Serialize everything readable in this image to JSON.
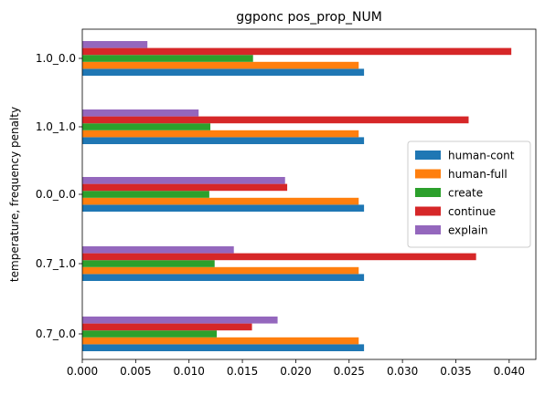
{
  "chart_data": {
    "type": "bar",
    "orientation": "horizontal",
    "title": "ggponc pos_prop_NUM",
    "xlabel": "",
    "ylabel": "temperature, frequency penalty",
    "categories": [
      "0.7_0.0",
      "0.7_1.0",
      "0.0_0.0",
      "1.0_1.0",
      "1.0_0.0"
    ],
    "xlim": [
      0,
      0.0425
    ],
    "xticks": [
      "0.000",
      "0.005",
      "0.010",
      "0.015",
      "0.020",
      "0.025",
      "0.030",
      "0.035",
      "0.040"
    ],
    "tick_values": [
      0,
      0.005,
      0.01,
      0.015,
      0.02,
      0.025,
      0.03,
      0.035,
      0.04
    ],
    "series": [
      {
        "name": "human-cont",
        "color": "#1f77b4",
        "values": [
          0.0264,
          0.0264,
          0.0264,
          0.0264,
          0.0264
        ]
      },
      {
        "name": "human-full",
        "color": "#ff7f0e",
        "values": [
          0.0259,
          0.0259,
          0.0259,
          0.0259,
          0.0259
        ]
      },
      {
        "name": "create",
        "color": "#2ca02c",
        "values": [
          0.0126,
          0.0124,
          0.0119,
          0.012,
          0.016
        ]
      },
      {
        "name": "continue",
        "color": "#d62728",
        "values": [
          0.0159,
          0.0369,
          0.0192,
          0.0362,
          0.0402
        ]
      },
      {
        "name": "explain",
        "color": "#9467bd",
        "values": [
          0.0183,
          0.0142,
          0.019,
          0.0109,
          0.0061
        ]
      }
    ],
    "legend_position": "center-right",
    "grid": false
  }
}
